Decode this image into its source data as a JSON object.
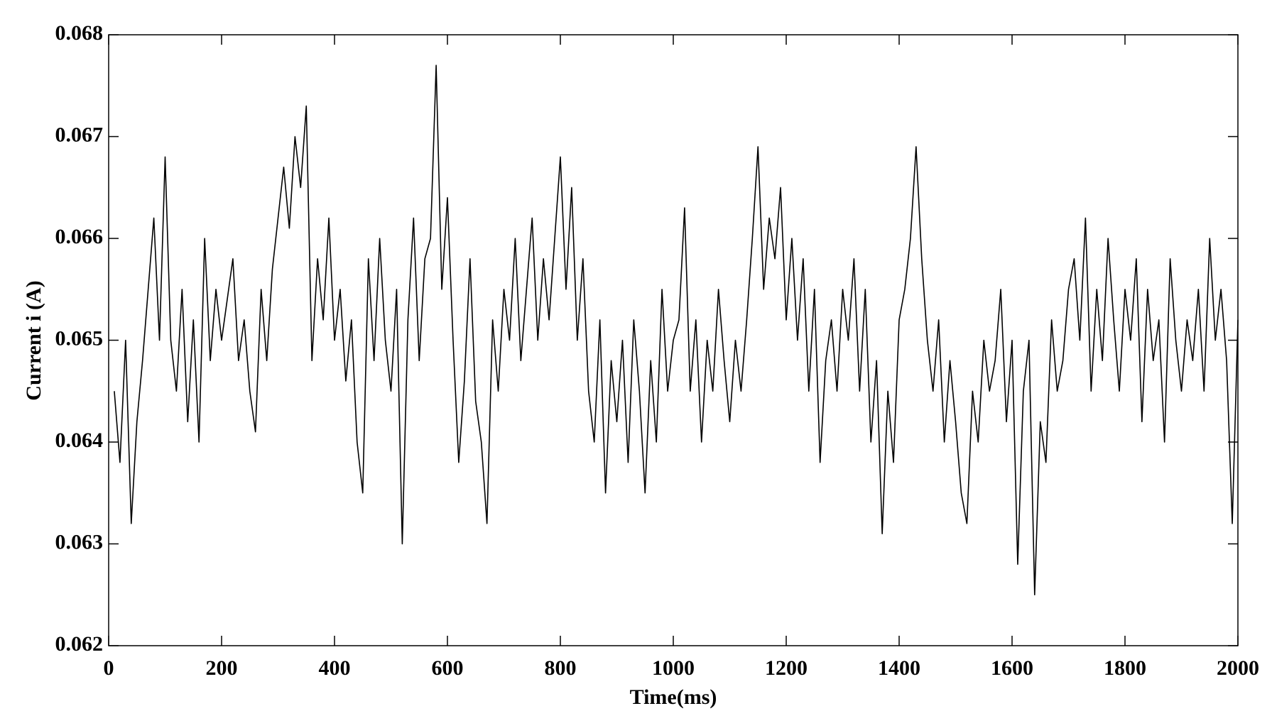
{
  "chart_data": {
    "type": "line",
    "xlabel": "Time(ms)",
    "ylabel": "Current i (A)",
    "xlim": [
      0,
      2000
    ],
    "xticks": [
      0,
      200,
      400,
      600,
      800,
      1000,
      1200,
      1400,
      1600,
      1800,
      2000
    ],
    "ylim": [
      0.062,
      0.068
    ],
    "yticks": [
      0.062,
      0.063,
      0.064,
      0.065,
      0.066,
      0.067,
      0.068
    ],
    "grid": false,
    "series": [
      {
        "color": "#000000",
        "x": [
          10,
          20,
          30,
          40,
          50,
          60,
          70,
          80,
          90,
          100,
          110,
          120,
          130,
          140,
          150,
          160,
          170,
          180,
          190,
          200,
          210,
          220,
          230,
          240,
          250,
          260,
          270,
          280,
          290,
          300,
          310,
          320,
          330,
          340,
          350,
          360,
          370,
          380,
          390,
          400,
          410,
          420,
          430,
          440,
          450,
          460,
          470,
          480,
          490,
          500,
          510,
          520,
          530,
          540,
          550,
          560,
          570,
          580,
          590,
          600,
          610,
          620,
          630,
          640,
          650,
          660,
          670,
          680,
          690,
          700,
          710,
          720,
          730,
          740,
          750,
          760,
          770,
          780,
          790,
          800,
          810,
          820,
          830,
          840,
          850,
          860,
          870,
          880,
          890,
          900,
          910,
          920,
          930,
          940,
          950,
          960,
          970,
          980,
          990,
          1000,
          1010,
          1020,
          1030,
          1040,
          1050,
          1060,
          1070,
          1080,
          1090,
          1100,
          1110,
          1120,
          1130,
          1140,
          1150,
          1160,
          1170,
          1180,
          1190,
          1200,
          1210,
          1220,
          1230,
          1240,
          1250,
          1260,
          1270,
          1280,
          1290,
          1300,
          1310,
          1320,
          1330,
          1340,
          1350,
          1360,
          1370,
          1380,
          1390,
          1400,
          1410,
          1420,
          1430,
          1440,
          1450,
          1460,
          1470,
          1480,
          1490,
          1500,
          1510,
          1520,
          1530,
          1540,
          1550,
          1560,
          1570,
          1580,
          1590,
          1600,
          1610,
          1620,
          1630,
          1640,
          1650,
          1660,
          1670,
          1680,
          1690,
          1700,
          1710,
          1720,
          1730,
          1740,
          1750,
          1760,
          1770,
          1780,
          1790,
          1800,
          1810,
          1820,
          1830,
          1840,
          1850,
          1860,
          1870,
          1880,
          1890,
          1900,
          1910,
          1920,
          1930,
          1940,
          1950,
          1960,
          1970,
          1980,
          1990,
          2000
        ],
        "values": [
          0.0645,
          0.0638,
          0.065,
          0.0632,
          0.0642,
          0.0648,
          0.0655,
          0.0662,
          0.065,
          0.0668,
          0.065,
          0.0645,
          0.0655,
          0.0642,
          0.0652,
          0.064,
          0.066,
          0.0648,
          0.0655,
          0.065,
          0.0654,
          0.0658,
          0.0648,
          0.0652,
          0.0645,
          0.0641,
          0.0655,
          0.0648,
          0.0657,
          0.0662,
          0.0667,
          0.0661,
          0.067,
          0.0665,
          0.0673,
          0.0648,
          0.0658,
          0.0652,
          0.0662,
          0.065,
          0.0655,
          0.0646,
          0.0652,
          0.064,
          0.0635,
          0.0658,
          0.0648,
          0.066,
          0.065,
          0.0645,
          0.0655,
          0.063,
          0.0652,
          0.0662,
          0.0648,
          0.0658,
          0.066,
          0.0677,
          0.0655,
          0.0664,
          0.065,
          0.0638,
          0.0646,
          0.0658,
          0.0644,
          0.064,
          0.0632,
          0.0652,
          0.0645,
          0.0655,
          0.065,
          0.066,
          0.0648,
          0.0655,
          0.0662,
          0.065,
          0.0658,
          0.0652,
          0.066,
          0.0668,
          0.0655,
          0.0665,
          0.065,
          0.0658,
          0.0645,
          0.064,
          0.0652,
          0.0635,
          0.0648,
          0.0642,
          0.065,
          0.0638,
          0.0652,
          0.0645,
          0.0635,
          0.0648,
          0.064,
          0.0655,
          0.0645,
          0.065,
          0.0652,
          0.0663,
          0.0645,
          0.0652,
          0.064,
          0.065,
          0.0645,
          0.0655,
          0.0648,
          0.0642,
          0.065,
          0.0645,
          0.0652,
          0.066,
          0.0669,
          0.0655,
          0.0662,
          0.0658,
          0.0665,
          0.0652,
          0.066,
          0.065,
          0.0658,
          0.0645,
          0.0655,
          0.0638,
          0.0648,
          0.0652,
          0.0645,
          0.0655,
          0.065,
          0.0658,
          0.0645,
          0.0655,
          0.064,
          0.0648,
          0.0631,
          0.0645,
          0.0638,
          0.0652,
          0.0655,
          0.066,
          0.0669,
          0.0658,
          0.065,
          0.0645,
          0.0652,
          0.064,
          0.0648,
          0.0642,
          0.0635,
          0.0632,
          0.0645,
          0.064,
          0.065,
          0.0645,
          0.0648,
          0.0655,
          0.0642,
          0.065,
          0.0628,
          0.0645,
          0.065,
          0.0625,
          0.0642,
          0.0638,
          0.0652,
          0.0645,
          0.0648,
          0.0655,
          0.0658,
          0.065,
          0.0662,
          0.0645,
          0.0655,
          0.0648,
          0.066,
          0.0652,
          0.0645,
          0.0655,
          0.065,
          0.0658,
          0.0642,
          0.0655,
          0.0648,
          0.0652,
          0.064,
          0.0658,
          0.065,
          0.0645,
          0.0652,
          0.0648,
          0.0655,
          0.0645,
          0.066,
          0.065,
          0.0655,
          0.0648,
          0.0632,
          0.0652
        ]
      }
    ]
  }
}
